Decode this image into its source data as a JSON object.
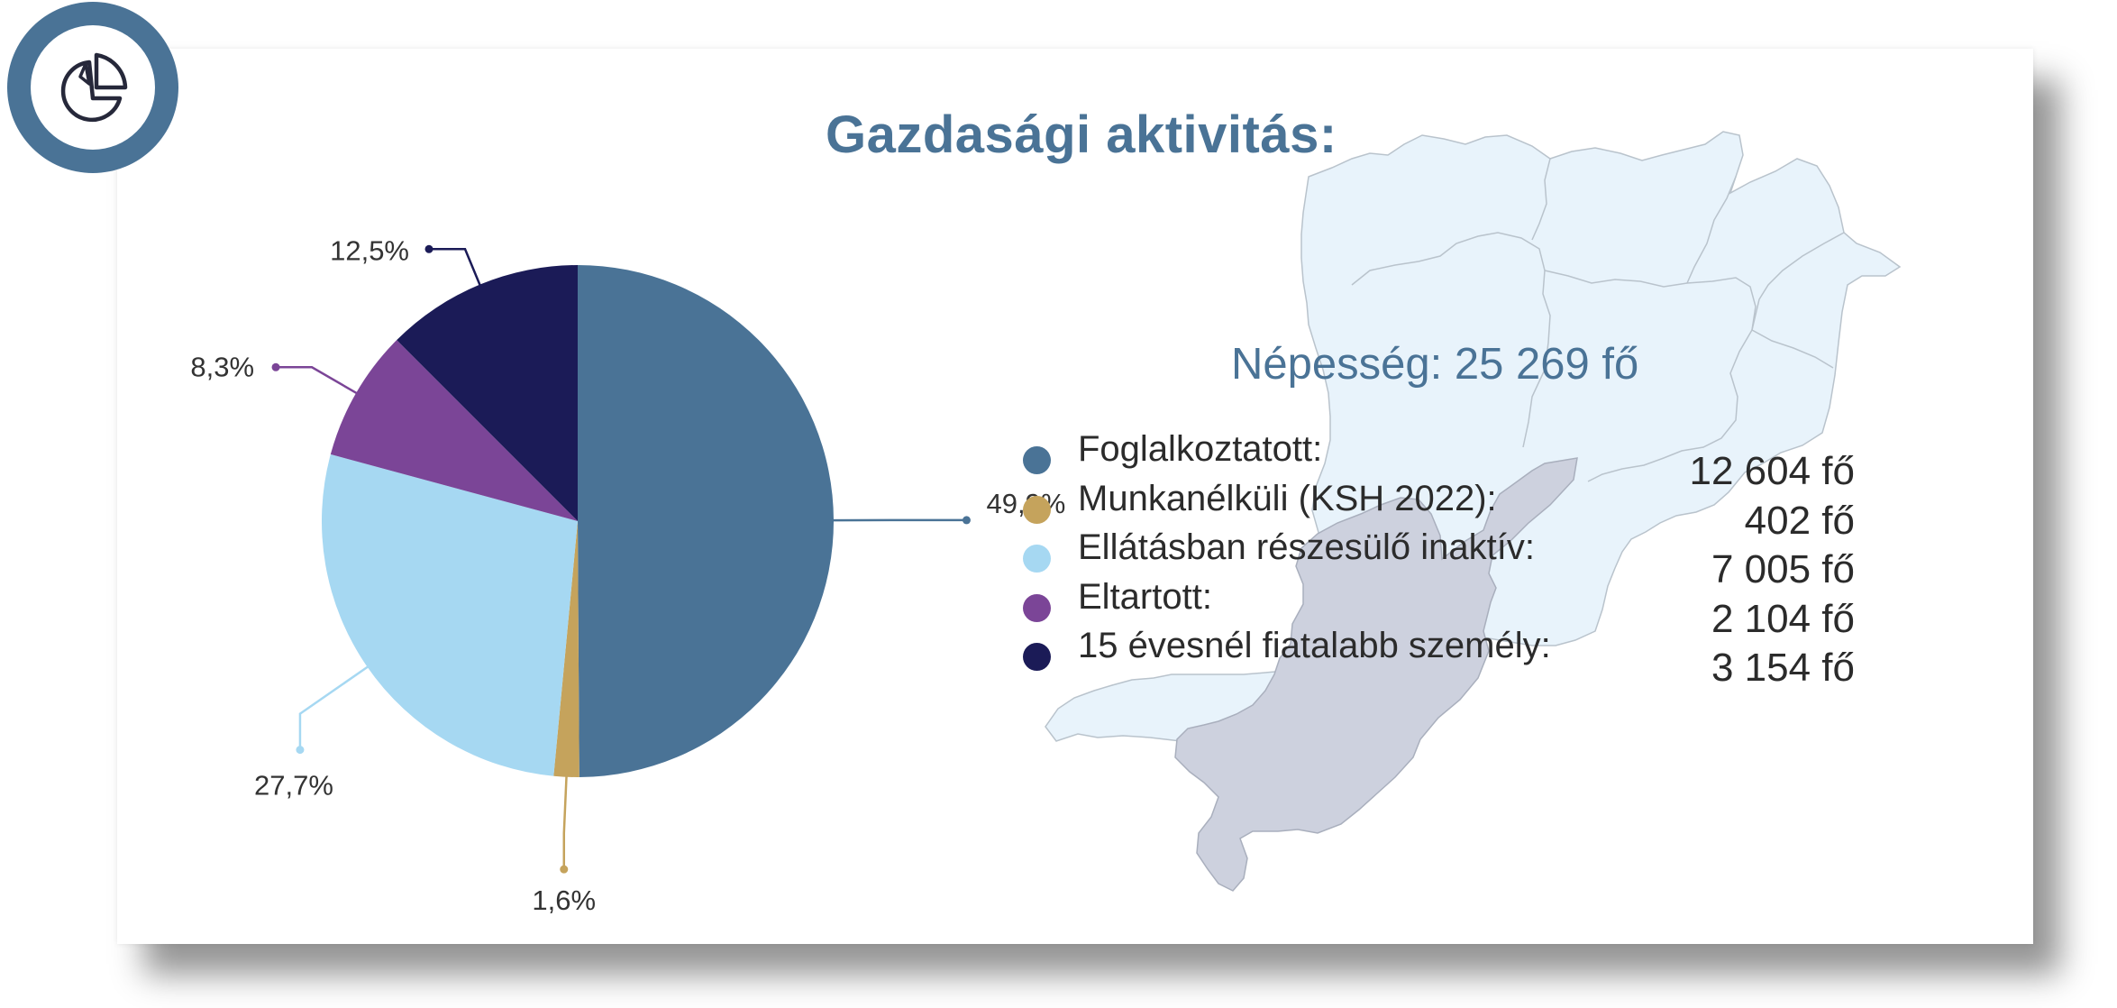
{
  "header": {
    "title": "Gazdasági aktivitás:",
    "badge_icon": "pie-chart-icon"
  },
  "population": {
    "label": "Népesség: 25 269 fő"
  },
  "colors": {
    "brand": "#4a7396",
    "map_fill": "#e8f3fb",
    "map_highlight": "#cdd1de"
  },
  "legend": {
    "items": [
      {
        "label": "Foglalkoztatott:",
        "value": "12 604 fő",
        "color": "#4a7396"
      },
      {
        "label": "Munkanélküli (KSH 2022):",
        "value": "402 fő",
        "color": "#c5a35c"
      },
      {
        "label": "Ellátásban részesülő inaktív:",
        "value": "7 005 fő",
        "color": "#a6d8f2"
      },
      {
        "label": "Eltartott:",
        "value": "2 104 fő",
        "color": "#7b4597"
      },
      {
        "label": "15 évesnél fiatalabb személy:",
        "value": "3 154 fő",
        "color": "#1b1b57"
      }
    ]
  },
  "chart_data": {
    "type": "pie",
    "title": "Gazdasági aktivitás:",
    "categories": [
      "Foglalkoztatott",
      "Munkanélküli (KSH 2022)",
      "Ellátásban részesülő inaktív",
      "Eltartott",
      "15 évesnél fiatalabb személy"
    ],
    "values": [
      49.9,
      1.6,
      27.7,
      8.3,
      12.5
    ],
    "labels": [
      "49,9%",
      "1,6%",
      "27,7%",
      "8,3%",
      "12,5%"
    ],
    "colors": [
      "#4a7396",
      "#c5a35c",
      "#a6d8f2",
      "#7b4597",
      "#1b1b57"
    ],
    "start": "top",
    "direction": "clockwise",
    "legend": "right"
  }
}
